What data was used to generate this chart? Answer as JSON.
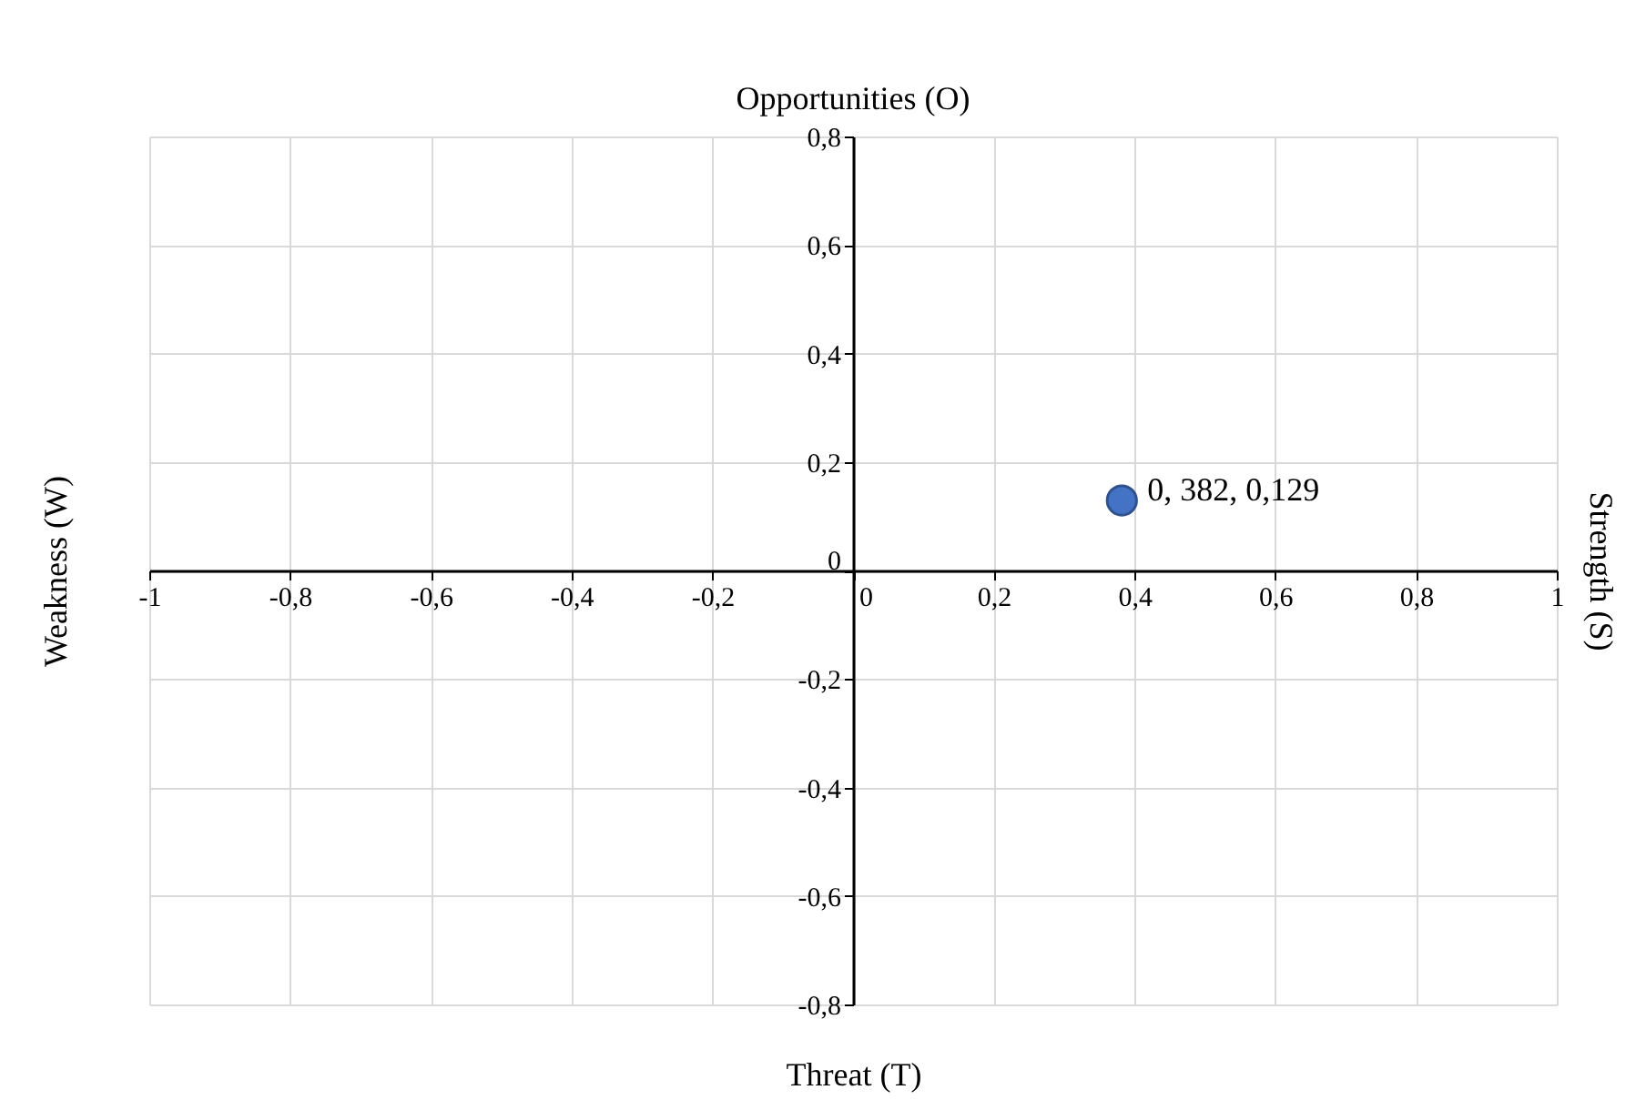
{
  "chart_data": {
    "type": "scatter",
    "title": "Opportunities (O)",
    "xlabel": "Threat (T)",
    "ylabel": "Weakness (W)",
    "y2label": "Strength (S)",
    "x": [
      0.382
    ],
    "series": [
      {
        "color": "#4472c4",
        "values": [
          0.129
        ]
      }
    ],
    "annotations": [
      {
        "text": "0, 382, 0,129",
        "x": 0.382,
        "y": 0.129
      }
    ],
    "xlim": [
      -1,
      1
    ],
    "ylim": [
      -0.8,
      0.8
    ],
    "xticks": [
      -1,
      {
        "value": -0.8,
        "label": "-0,8"
      },
      {
        "value": -0.6,
        "label": "-0,6"
      },
      {
        "value": -0.4,
        "label": "-0,4"
      },
      {
        "value": -0.2,
        "label": "-0,2"
      },
      0,
      {
        "value": 0.2,
        "label": "0,2"
      },
      {
        "value": 0.4,
        "label": "0,4"
      },
      {
        "value": 0.6,
        "label": "0,6"
      },
      {
        "value": 0.8,
        "label": "0,8"
      },
      1
    ],
    "yticks": [
      {
        "value": -0.8,
        "label": "-0,8"
      },
      {
        "value": -0.6,
        "label": "-0,6"
      },
      {
        "value": -0.4,
        "label": "-0,4"
      },
      {
        "value": -0.2,
        "label": "-0,2"
      },
      0,
      {
        "value": 0.2,
        "label": "0,2"
      },
      {
        "value": 0.4,
        "label": "0,4"
      },
      {
        "value": 0.6,
        "label": "0,6"
      },
      {
        "value": 0.8,
        "label": "0,8"
      }
    ],
    "grid": true,
    "marker": "circle",
    "legend": false
  }
}
